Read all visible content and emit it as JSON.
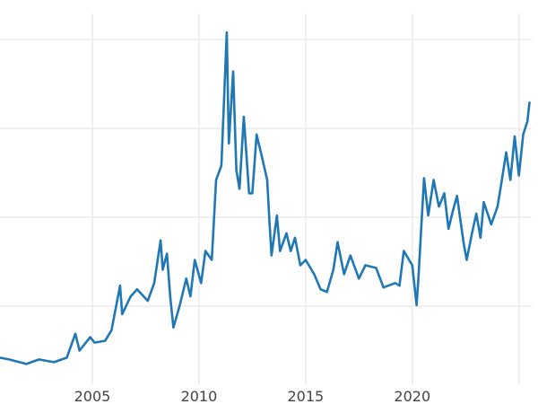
{
  "chart_data": {
    "type": "line",
    "title": "",
    "xlabel": "",
    "ylabel": "",
    "x_gridlines": [
      2005,
      2010,
      2015,
      2020,
      2025
    ],
    "x_tick_labels": [
      "2005",
      "2010",
      "2015",
      "2020"
    ],
    "y_gridlines": [
      10,
      20,
      30,
      40
    ],
    "xlim": [
      2000.67,
      2025.6
    ],
    "ylim": [
      0,
      42
    ],
    "grid": true,
    "legend": "none",
    "color": "#1f77b4",
    "series": [
      {
        "x": [
          2000.67,
          2001.1,
          2001.9,
          2002.5,
          2003.2,
          2003.8,
          2004.2,
          2004.4,
          2004.9,
          2005.1,
          2005.6,
          2005.9,
          2006.3,
          2006.4,
          2006.8,
          2007.1,
          2007.6,
          2007.9,
          2008.2,
          2008.3,
          2008.5,
          2008.65,
          2008.8,
          2009.1,
          2009.4,
          2009.6,
          2009.8,
          2010.1,
          2010.3,
          2010.6,
          2010.8,
          2011.05,
          2011.3,
          2011.4,
          2011.6,
          2011.75,
          2011.9,
          2012.1,
          2012.35,
          2012.5,
          2012.7,
          2012.9,
          2013.2,
          2013.3,
          2013.4,
          2013.65,
          2013.8,
          2014.1,
          2014.3,
          2014.5,
          2014.75,
          2015.0,
          2015.4,
          2015.7,
          2016.0,
          2016.3,
          2016.5,
          2016.8,
          2017.1,
          2017.5,
          2017.8,
          2018.3,
          2018.65,
          2019.2,
          2019.4,
          2019.6,
          2020.0,
          2020.2,
          2020.3,
          2020.55,
          2020.75,
          2021.0,
          2021.25,
          2021.5,
          2021.7,
          2021.9,
          2022.1,
          2022.4,
          2022.55,
          2022.8,
          2023.0,
          2023.2,
          2023.35,
          2023.7,
          2024.0,
          2024.2,
          2024.4,
          2024.6,
          2024.8,
          2025.0,
          2025.2,
          2025.4,
          2025.5
        ],
        "values": [
          4.2,
          4.0,
          3.5,
          4.0,
          3.7,
          4.2,
          6.9,
          5.0,
          6.5,
          5.9,
          6.1,
          7.3,
          12.3,
          9.1,
          11.1,
          11.9,
          10.6,
          12.6,
          17.4,
          14.1,
          15.9,
          11.1,
          7.6,
          10.1,
          13.1,
          11.1,
          15.2,
          12.6,
          16.2,
          15.2,
          24.2,
          25.8,
          40.8,
          28.3,
          36.4,
          25.3,
          23.2,
          31.3,
          22.7,
          22.7,
          29.3,
          27.3,
          24.2,
          19.7,
          15.7,
          20.2,
          16.2,
          18.2,
          16.2,
          17.7,
          14.6,
          15.2,
          13.6,
          11.9,
          11.6,
          14.1,
          17.2,
          13.6,
          15.7,
          13.1,
          14.6,
          14.3,
          12.1,
          12.6,
          12.3,
          16.2,
          14.6,
          10.1,
          13.6,
          24.4,
          20.2,
          24.2,
          21.2,
          22.7,
          18.7,
          20.7,
          22.4,
          17.2,
          15.2,
          18.2,
          20.4,
          17.7,
          21.7,
          19.2,
          21.2,
          24.2,
          27.3,
          24.2,
          29.1,
          24.7,
          29.3,
          30.8,
          33.0
        ]
      }
    ]
  }
}
